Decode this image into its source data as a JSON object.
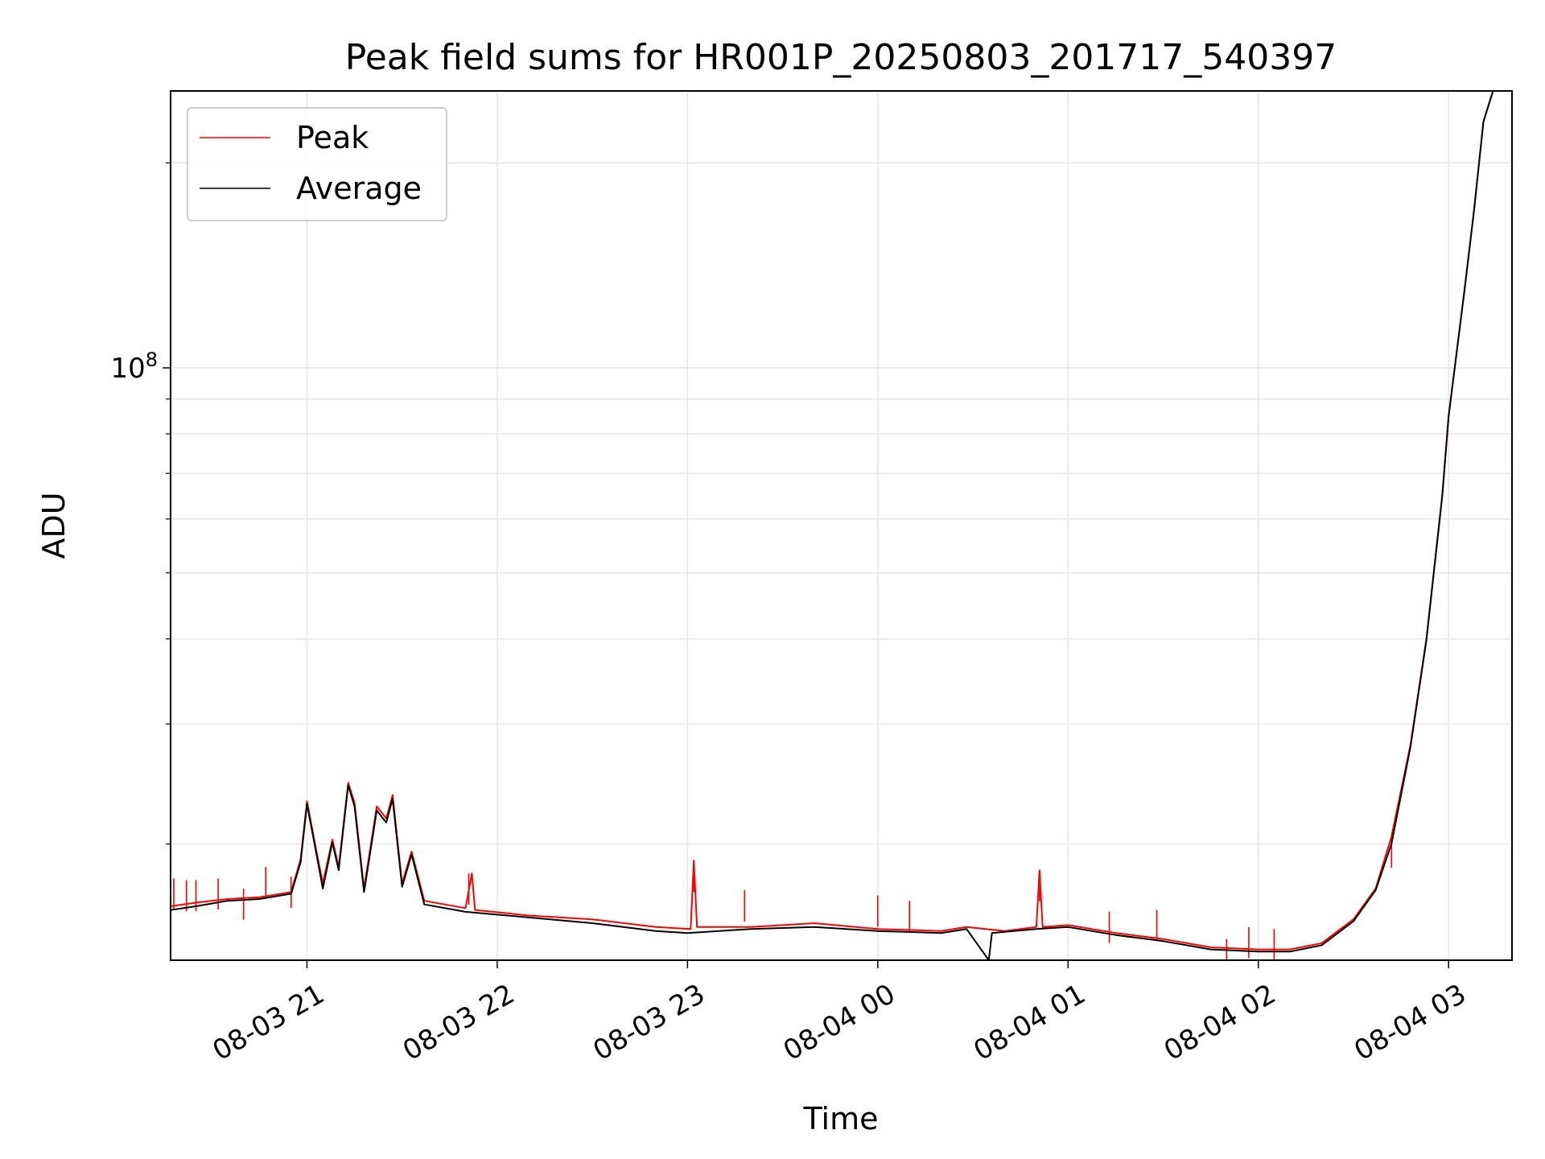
{
  "chart_data": {
    "type": "line",
    "title": "Peak field sums for HR001P_20250803_201717_540397",
    "xlabel": "Time",
    "ylabel": "ADU",
    "y_scale": "log",
    "ylim": [
      13500000,
      255000000
    ],
    "xlim": [
      "2025-08-03 20:17",
      "2025-08-04 03:20"
    ],
    "x_ticks": [
      {
        "t": "2025-08-03 21:00",
        "label": "08-03 21"
      },
      {
        "t": "2025-08-03 22:00",
        "label": "08-03 22"
      },
      {
        "t": "2025-08-03 23:00",
        "label": "08-03 23"
      },
      {
        "t": "2025-08-04 00:00",
        "label": "08-04 00"
      },
      {
        "t": "2025-08-04 01:00",
        "label": "08-04 01"
      },
      {
        "t": "2025-08-04 02:00",
        "label": "08-04 02"
      },
      {
        "t": "2025-08-04 03:00",
        "label": "08-04 03"
      }
    ],
    "y_ticks": [
      {
        "v": 100000000,
        "label": "10^8"
      }
    ],
    "y_minor_ticks": [
      20000000,
      30000000,
      40000000,
      50000000,
      60000000,
      70000000,
      80000000,
      90000000,
      200000000
    ],
    "grid": true,
    "legend_position": "top-left",
    "colors": {
      "peak": "#ff0000",
      "average": "#000000",
      "grid": "#e6e6e6"
    },
    "series": [
      {
        "name": "Peak",
        "points": [
          [
            "2025-08-03 20:17",
            16200000
          ],
          [
            "2025-08-03 20:25",
            16400000
          ],
          [
            "2025-08-03 20:35",
            16600000
          ],
          [
            "2025-08-03 20:45",
            16700000
          ],
          [
            "2025-08-03 20:55",
            17000000
          ],
          [
            "2025-08-03 20:58",
            19000000
          ],
          [
            "2025-08-03 21:00",
            23100000
          ],
          [
            "2025-08-03 21:03",
            19500000
          ],
          [
            "2025-08-03 21:05",
            17500000
          ],
          [
            "2025-08-03 21:08",
            20300000
          ],
          [
            "2025-08-03 21:10",
            18500000
          ],
          [
            "2025-08-03 21:13",
            24600000
          ],
          [
            "2025-08-03 21:15",
            23000000
          ],
          [
            "2025-08-03 21:18",
            17200000
          ],
          [
            "2025-08-03 21:22",
            22700000
          ],
          [
            "2025-08-03 21:25",
            21800000
          ],
          [
            "2025-08-03 21:27",
            23600000
          ],
          [
            "2025-08-03 21:30",
            17500000
          ],
          [
            "2025-08-03 21:33",
            19500000
          ],
          [
            "2025-08-03 21:37",
            16500000
          ],
          [
            "2025-08-03 21:50",
            16100000
          ],
          [
            "2025-08-03 21:52",
            18100000
          ],
          [
            "2025-08-03 21:53",
            16000000
          ],
          [
            "2025-08-03 22:10",
            15700000
          ],
          [
            "2025-08-03 22:30",
            15500000
          ],
          [
            "2025-08-03 22:50",
            15100000
          ],
          [
            "2025-08-03 23:01",
            15000000
          ],
          [
            "2025-08-03 23:02",
            18900000
          ],
          [
            "2025-08-03 23:03",
            15100000
          ],
          [
            "2025-08-03 23:20",
            15100000
          ],
          [
            "2025-08-03 23:40",
            15300000
          ],
          [
            "2025-08-04 00:00",
            15000000
          ],
          [
            "2025-08-04 00:20",
            14900000
          ],
          [
            "2025-08-04 00:28",
            15100000
          ],
          [
            "2025-08-04 00:40",
            14900000
          ],
          [
            "2025-08-04 00:50",
            15100000
          ],
          [
            "2025-08-04 00:51",
            18300000
          ],
          [
            "2025-08-04 00:52",
            15100000
          ],
          [
            "2025-08-04 01:00",
            15200000
          ],
          [
            "2025-08-04 01:15",
            14800000
          ],
          [
            "2025-08-04 01:30",
            14500000
          ],
          [
            "2025-08-04 01:45",
            14100000
          ],
          [
            "2025-08-04 02:00",
            14000000
          ],
          [
            "2025-08-04 02:10",
            14000000
          ],
          [
            "2025-08-04 02:20",
            14300000
          ],
          [
            "2025-08-04 02:30",
            15500000
          ],
          [
            "2025-08-04 02:37",
            17200000
          ],
          [
            "2025-08-04 02:42",
            20500000
          ],
          [
            "2025-08-04 02:48",
            28000000
          ],
          [
            "2025-08-04 02:53",
            40000000
          ],
          [
            "2025-08-04 02:58",
            65000000
          ],
          [
            "2025-08-04 03:00",
            85000000
          ],
          [
            "2025-08-04 03:05",
            130000000
          ],
          [
            "2025-08-04 03:08",
            170000000
          ],
          [
            "2025-08-04 03:11",
            230000000
          ],
          [
            "2025-08-04 03:14",
            255000000
          ]
        ],
        "spikes": [
          [
            "2025-08-03 20:18",
            17800000
          ],
          [
            "2025-08-03 20:22",
            17700000
          ],
          [
            "2025-08-03 20:25",
            17700000
          ],
          [
            "2025-08-03 20:32",
            17800000
          ],
          [
            "2025-08-03 20:40",
            17200000
          ],
          [
            "2025-08-03 20:47",
            18500000
          ],
          [
            "2025-08-03 20:55",
            17900000
          ],
          [
            "2025-08-03 21:51",
            18100000
          ],
          [
            "2025-08-03 23:02",
            18900000
          ],
          [
            "2025-08-03 23:18",
            17100000
          ],
          [
            "2025-08-04 00:00",
            16800000
          ],
          [
            "2025-08-04 00:10",
            16500000
          ],
          [
            "2025-08-04 00:51",
            18300000
          ],
          [
            "2025-08-04 01:13",
            15900000
          ],
          [
            "2025-08-04 01:28",
            16000000
          ],
          [
            "2025-08-04 01:50",
            14500000
          ],
          [
            "2025-08-04 01:57",
            15100000
          ],
          [
            "2025-08-04 02:05",
            15000000
          ],
          [
            "2025-08-04 02:42",
            20500000
          ]
        ]
      },
      {
        "name": "Average",
        "points": [
          [
            "2025-08-03 20:17",
            16000000
          ],
          [
            "2025-08-03 20:25",
            16200000
          ],
          [
            "2025-08-03 20:35",
            16500000
          ],
          [
            "2025-08-03 20:45",
            16600000
          ],
          [
            "2025-08-03 20:55",
            16900000
          ],
          [
            "2025-08-03 20:58",
            18800000
          ],
          [
            "2025-08-03 21:00",
            22900000
          ],
          [
            "2025-08-03 21:03",
            19300000
          ],
          [
            "2025-08-03 21:05",
            17200000
          ],
          [
            "2025-08-03 21:08",
            20100000
          ],
          [
            "2025-08-03 21:10",
            18300000
          ],
          [
            "2025-08-03 21:13",
            24400000
          ],
          [
            "2025-08-03 21:15",
            22700000
          ],
          [
            "2025-08-03 21:18",
            17000000
          ],
          [
            "2025-08-03 21:22",
            22400000
          ],
          [
            "2025-08-03 21:25",
            21500000
          ],
          [
            "2025-08-03 21:27",
            23300000
          ],
          [
            "2025-08-03 21:30",
            17300000
          ],
          [
            "2025-08-03 21:33",
            19300000
          ],
          [
            "2025-08-03 21:37",
            16300000
          ],
          [
            "2025-08-03 21:50",
            15900000
          ],
          [
            "2025-08-03 22:10",
            15600000
          ],
          [
            "2025-08-03 22:30",
            15300000
          ],
          [
            "2025-08-03 22:50",
            14900000
          ],
          [
            "2025-08-03 23:00",
            14800000
          ],
          [
            "2025-08-03 23:20",
            15000000
          ],
          [
            "2025-08-03 23:40",
            15100000
          ],
          [
            "2025-08-04 00:00",
            14900000
          ],
          [
            "2025-08-04 00:20",
            14800000
          ],
          [
            "2025-08-04 00:28",
            15000000
          ],
          [
            "2025-08-04 00:35",
            13500000
          ],
          [
            "2025-08-04 00:36",
            14800000
          ],
          [
            "2025-08-04 00:50",
            15000000
          ],
          [
            "2025-08-04 01:00",
            15100000
          ],
          [
            "2025-08-04 01:15",
            14700000
          ],
          [
            "2025-08-04 01:30",
            14400000
          ],
          [
            "2025-08-04 01:45",
            14000000
          ],
          [
            "2025-08-04 02:00",
            13900000
          ],
          [
            "2025-08-04 02:10",
            13900000
          ],
          [
            "2025-08-04 02:20",
            14200000
          ],
          [
            "2025-08-04 02:30",
            15400000
          ],
          [
            "2025-08-04 02:37",
            17100000
          ],
          [
            "2025-08-04 02:42",
            20000000
          ],
          [
            "2025-08-04 02:48",
            27800000
          ],
          [
            "2025-08-04 02:53",
            39800000
          ],
          [
            "2025-08-04 02:58",
            64800000
          ],
          [
            "2025-08-04 03:00",
            84800000
          ],
          [
            "2025-08-04 03:05",
            129800000
          ],
          [
            "2025-08-04 03:08",
            169800000
          ],
          [
            "2025-08-04 03:11",
            229800000
          ],
          [
            "2025-08-04 03:14",
            255000000
          ]
        ]
      }
    ]
  }
}
